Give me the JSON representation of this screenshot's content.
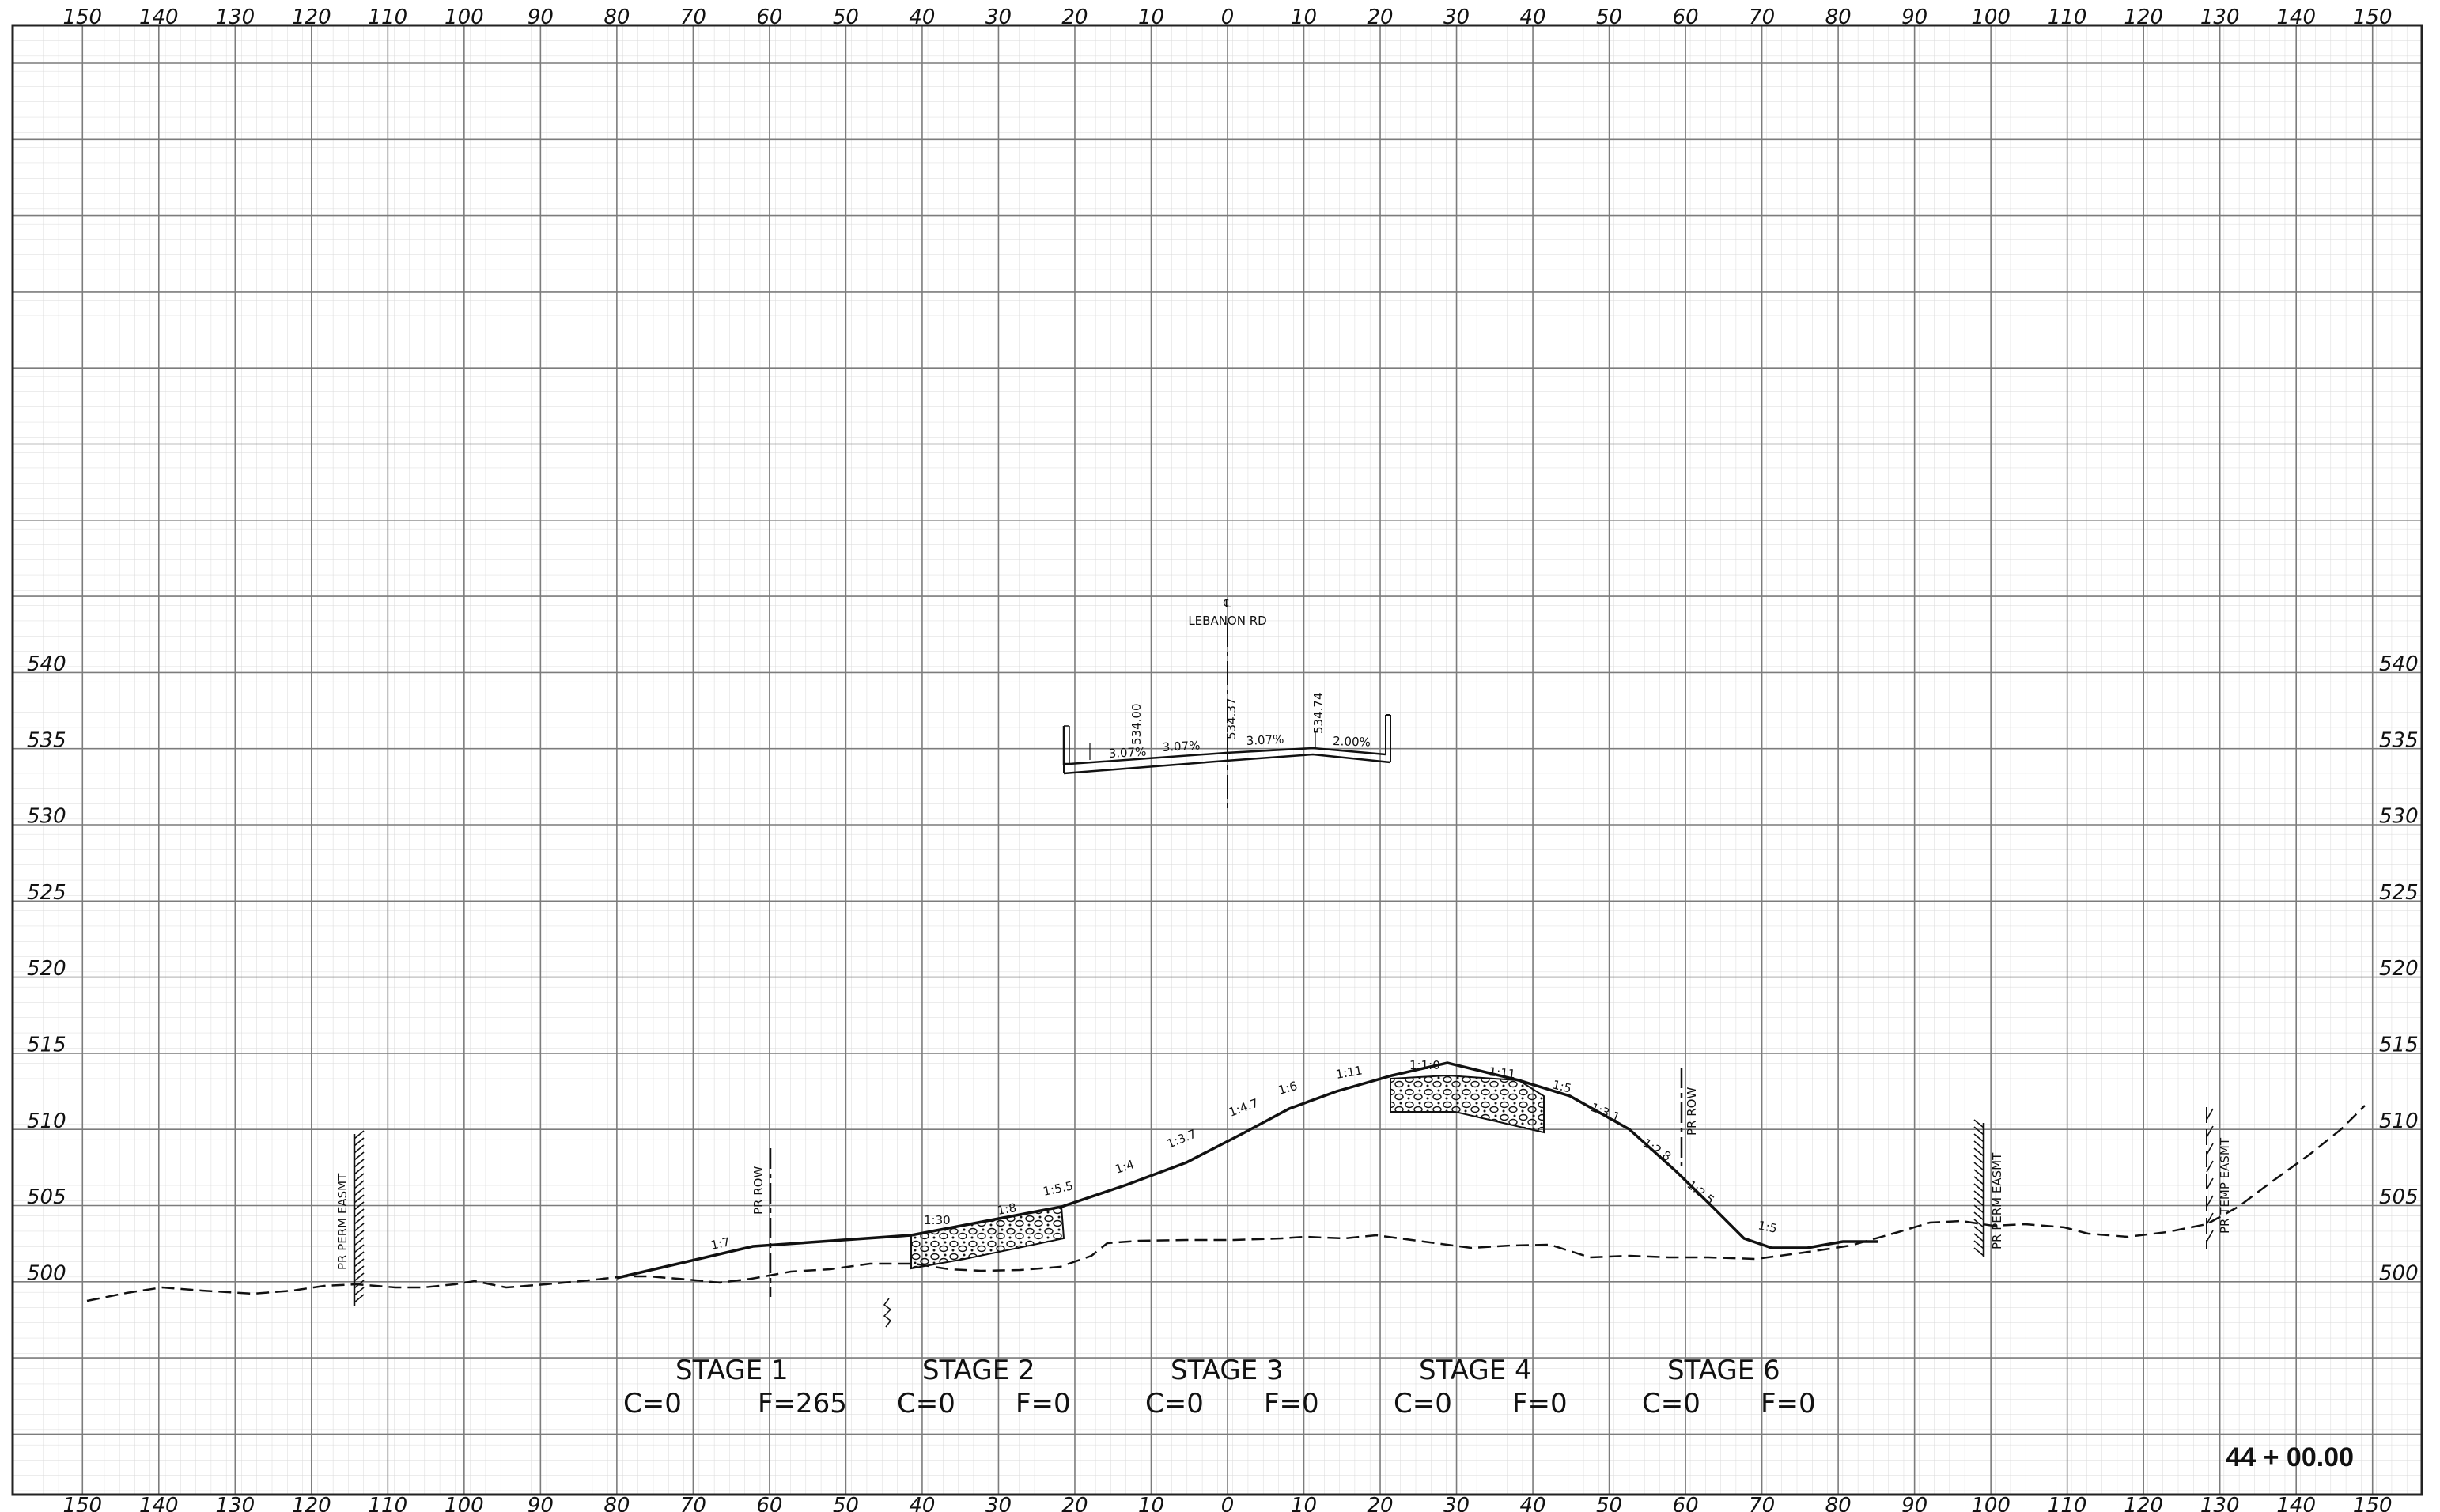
{
  "sheet": {
    "station": "44 + 00.00",
    "centerline_label": "LEBANON RD",
    "centerline_symbol": "℄"
  },
  "offset_ticks": [
    "150",
    "140",
    "130",
    "120",
    "110",
    "100",
    "90",
    "80",
    "70",
    "60",
    "50",
    "40",
    "30",
    "20",
    "10",
    "0",
    "10",
    "20",
    "30",
    "40",
    "50",
    "60",
    "70",
    "80",
    "90",
    "100",
    "110",
    "120",
    "130",
    "140",
    "150"
  ],
  "elevation_ticks": [
    "540",
    "535",
    "530",
    "525",
    "520",
    "515",
    "510",
    "505",
    "500"
  ],
  "roadway": {
    "slopes": [
      "3.07%",
      "3.07%",
      "3.07%",
      "2.00%"
    ],
    "elevations": [
      "534.00",
      "534.37",
      "534.74"
    ]
  },
  "slope_labels": [
    "1:7",
    "1:30",
    "1:8",
    "1:5.5",
    "1:4",
    "1:3.7",
    "1:4.7",
    "1:6",
    "1:11",
    "1:1:0",
    "1:11",
    "1:5",
    "1:3.1",
    "1:2.8",
    "1:2.5",
    "1:5"
  ],
  "lines": [
    {
      "label": "PR PERM EASMT",
      "side": "left",
      "offset": -115
    },
    {
      "label": "PR ROW",
      "side": "left",
      "offset": -60
    },
    {
      "label": "PR ROW",
      "side": "right",
      "offset": 60
    },
    {
      "label": "PR PERM EASMT",
      "side": "right",
      "offset": 100
    },
    {
      "label": "PR TEMP EASMT",
      "side": "right",
      "offset": 130
    }
  ],
  "stages": [
    {
      "name": "STAGE 1",
      "cut": "C=0",
      "fill": "F=265"
    },
    {
      "name": "STAGE 2",
      "cut": "C=0",
      "fill": "F=0"
    },
    {
      "name": "STAGE 3",
      "cut": "C=0",
      "fill": "F=0"
    },
    {
      "name": "STAGE 4",
      "cut": "C=0",
      "fill": "F=0"
    },
    {
      "name": "STAGE 6",
      "cut": "C=0",
      "fill": "F=0"
    }
  ],
  "colors": {
    "grid_major": "#7a7a7a",
    "grid_minor": "#d6d6d6",
    "ink": "#111111"
  }
}
